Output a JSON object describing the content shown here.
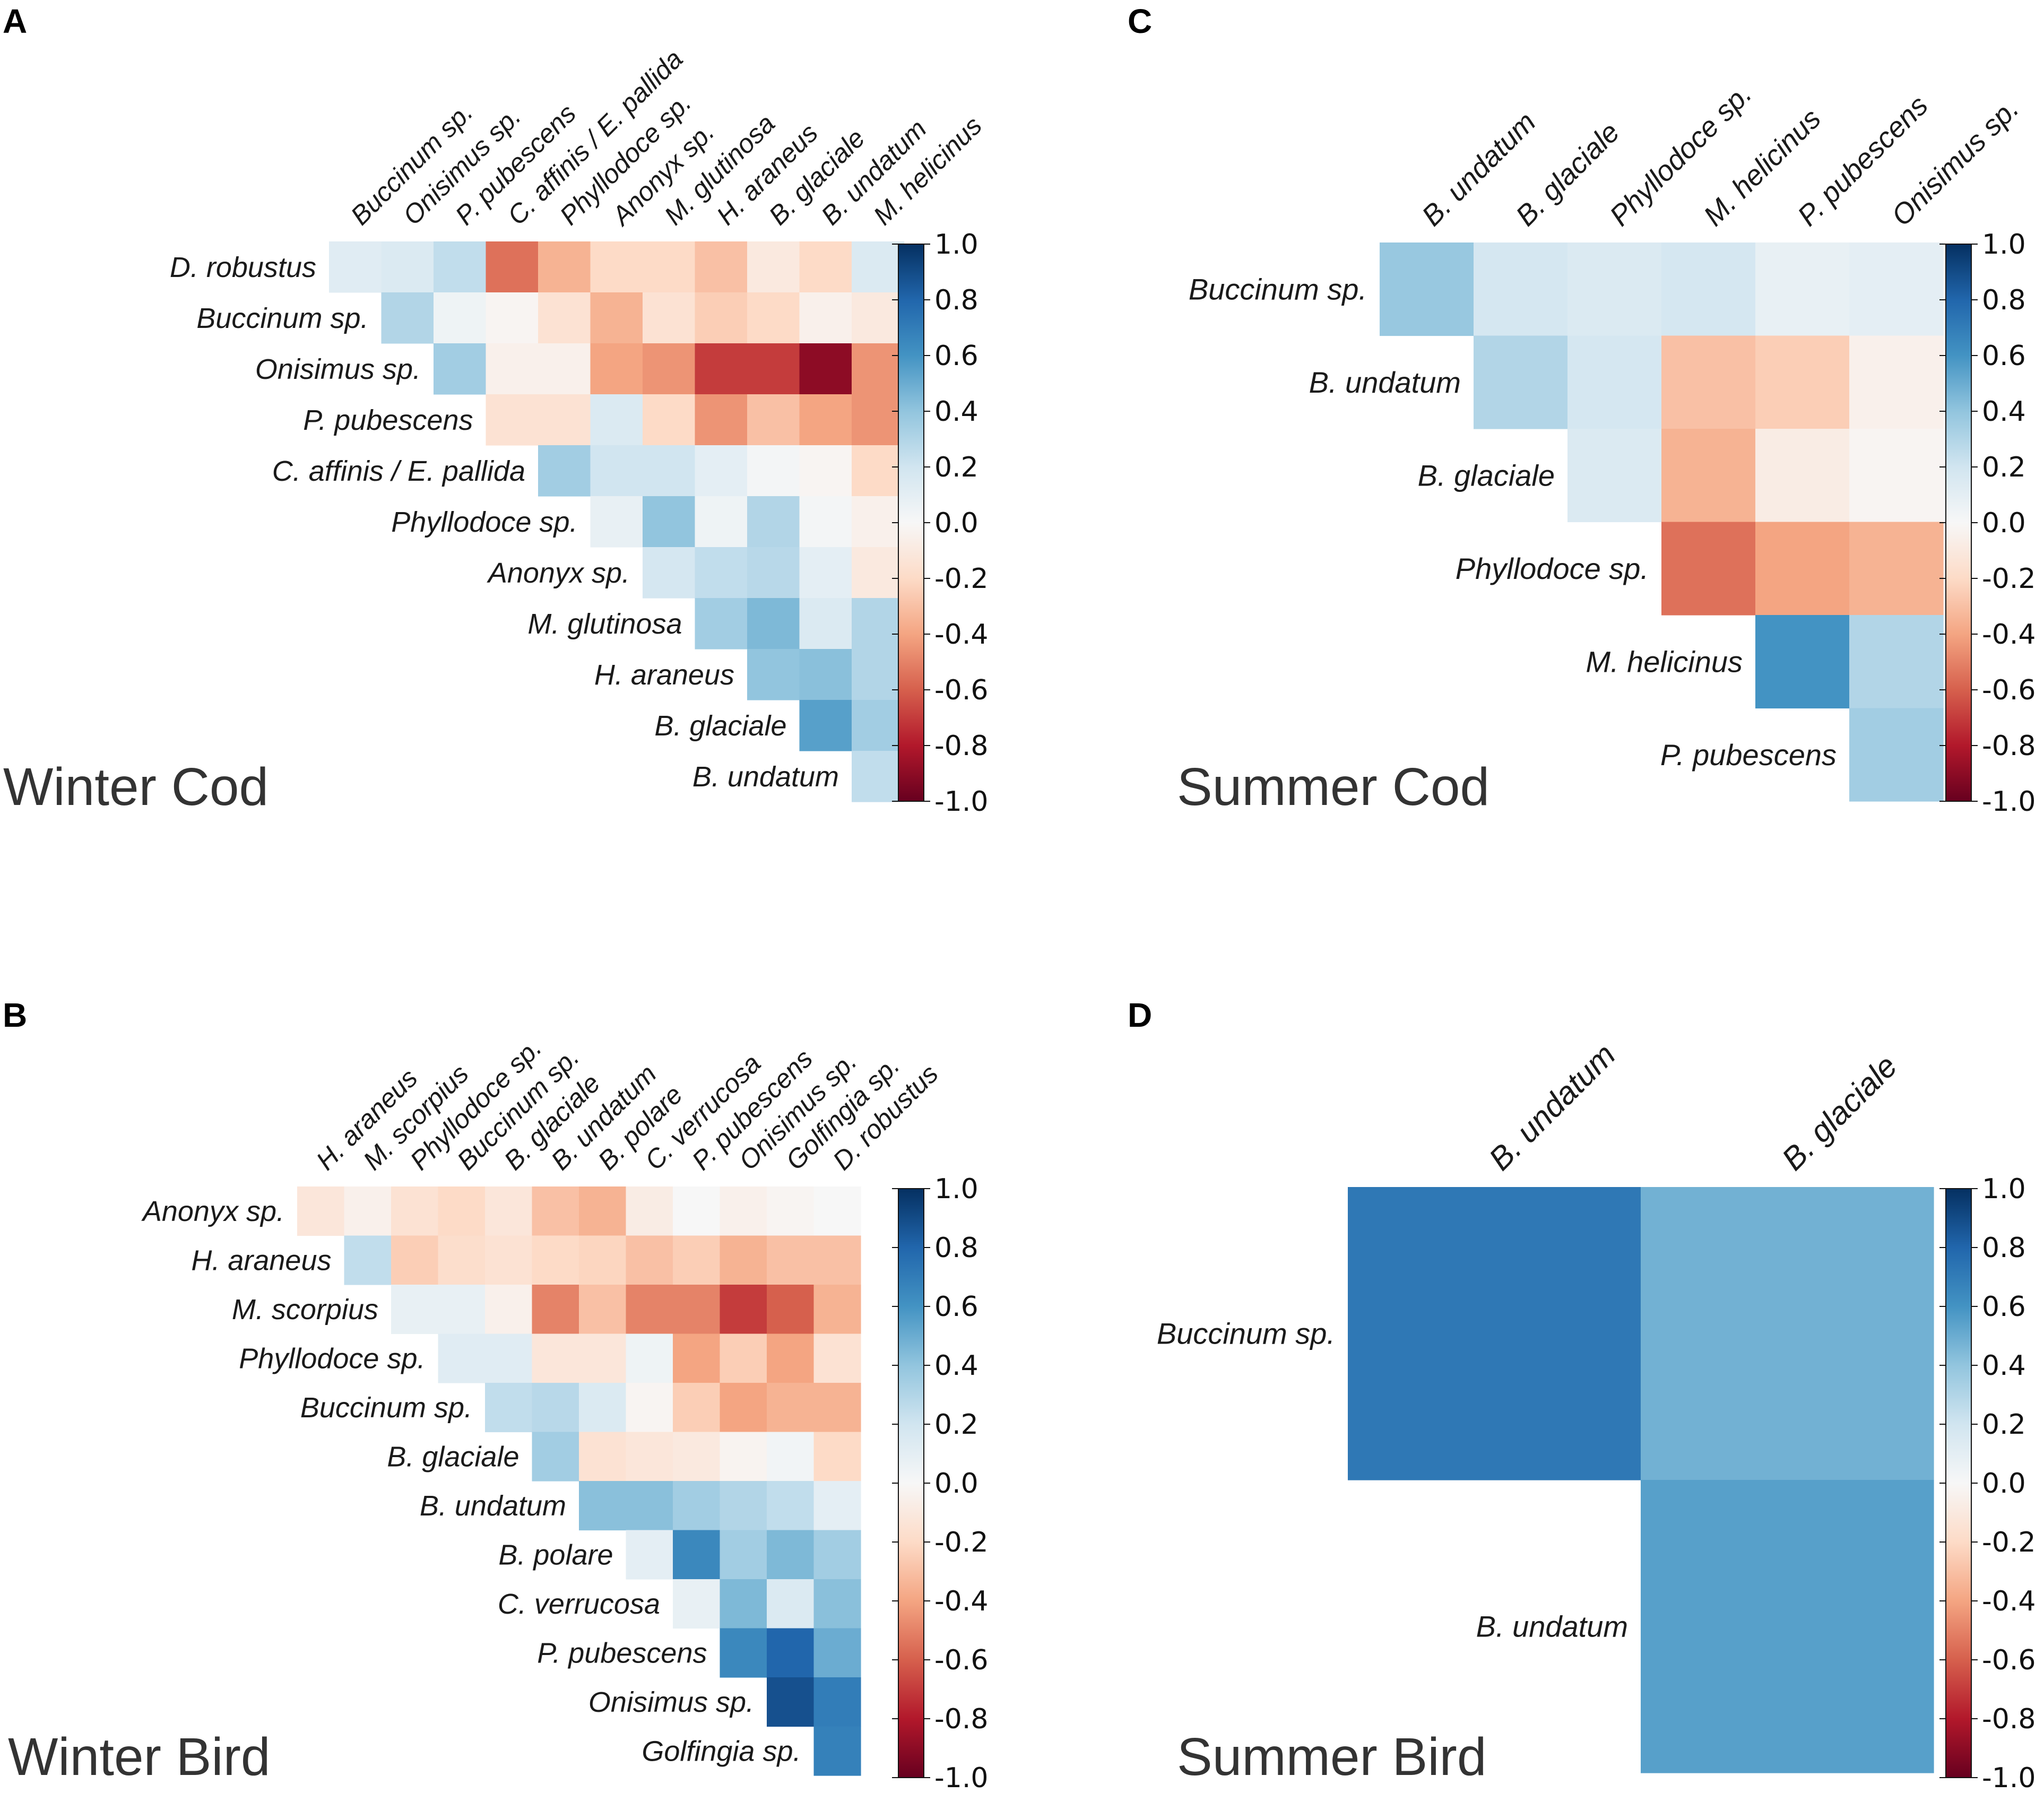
{
  "colormap": {
    "name": "RdBu",
    "stops": [
      "#67001f",
      "#b2182b",
      "#d6604d",
      "#f4a582",
      "#fddbc7",
      "#f7f7f7",
      "#d1e5f0",
      "#92c5de",
      "#4393c3",
      "#2166ac",
      "#053061"
    ],
    "ticks": [
      "1.0",
      "0.8",
      "0.6",
      "0.4",
      "0.2",
      "0.0",
      "-0.2",
      "-0.4",
      "-0.6",
      "-0.8",
      "-1.0"
    ]
  },
  "chart_data": [
    {
      "type": "heatmap",
      "panel": "A",
      "title": "Winter Cod",
      "vmin": -1,
      "vmax": 1,
      "columns": [
        "Buccinum sp.",
        "Onisimus sp.",
        "P. pubescens",
        "C. affinis / E. pallida",
        "Phyllodoce sp.",
        "Anonyx sp.",
        "M. glutinosa",
        "H. araneus",
        "B. glaciale",
        "B. undatum",
        "M. helicinus"
      ],
      "rows": [
        "D. robustus",
        "Buccinum sp.",
        "Onisimus sp.",
        "P. pubescens",
        "C. affinis / E. pallida",
        "Phyllodoce sp.",
        "Anonyx sp.",
        "M. glutinosa",
        "H. araneus",
        "B. glaciale",
        "B. undatum"
      ],
      "values": [
        [
          0.12,
          0.15,
          0.25,
          -0.55,
          -0.35,
          -0.2,
          -0.2,
          -0.3,
          -0.1,
          -0.2,
          0.15
        ],
        [
          null,
          0.3,
          0.05,
          -0.02,
          -0.15,
          -0.35,
          -0.15,
          -0.25,
          -0.2,
          -0.05,
          -0.1
        ],
        [
          null,
          null,
          0.35,
          -0.05,
          -0.05,
          -0.4,
          -0.45,
          -0.7,
          -0.7,
          -0.9,
          -0.45
        ],
        [
          null,
          null,
          null,
          -0.15,
          -0.15,
          0.15,
          -0.2,
          -0.45,
          -0.3,
          -0.4,
          -0.45
        ],
        [
          null,
          null,
          null,
          null,
          0.35,
          0.2,
          0.2,
          0.1,
          0.02,
          -0.02,
          -0.2
        ],
        [
          null,
          null,
          null,
          null,
          null,
          0.08,
          0.4,
          0.05,
          0.3,
          0.02,
          -0.05
        ],
        [
          null,
          null,
          null,
          null,
          null,
          null,
          0.18,
          0.25,
          0.28,
          0.1,
          -0.1
        ],
        [
          null,
          null,
          null,
          null,
          null,
          null,
          null,
          0.35,
          0.45,
          0.15,
          0.3
        ],
        [
          null,
          null,
          null,
          null,
          null,
          null,
          null,
          null,
          0.4,
          0.42,
          0.3
        ],
        [
          null,
          null,
          null,
          null,
          null,
          null,
          null,
          null,
          null,
          0.55,
          0.35
        ],
        [
          null,
          null,
          null,
          null,
          null,
          null,
          null,
          null,
          null,
          null,
          0.25
        ]
      ]
    },
    {
      "type": "heatmap",
      "panel": "C",
      "title": "Summer Cod",
      "vmin": -1,
      "vmax": 1,
      "columns": [
        "B. undatum",
        "B. glaciale",
        "Phyllodoce sp.",
        "M. helicinus",
        "P. pubescens",
        "Onisimus sp."
      ],
      "rows": [
        "Buccinum sp.",
        "B. undatum",
        "B. glaciale",
        "Phyllodoce sp.",
        "M. helicinus",
        "P. pubescens"
      ],
      "values": [
        [
          0.38,
          0.18,
          0.15,
          0.18,
          0.08,
          0.1
        ],
        [
          null,
          0.3,
          0.18,
          -0.3,
          -0.25,
          -0.05
        ],
        [
          null,
          null,
          0.15,
          -0.35,
          -0.08,
          -0.02
        ],
        [
          null,
          null,
          null,
          -0.55,
          -0.4,
          -0.35
        ],
        [
          null,
          null,
          null,
          null,
          0.6,
          0.3
        ],
        [
          null,
          null,
          null,
          null,
          null,
          0.35
        ]
      ]
    },
    {
      "type": "heatmap",
      "panel": "B",
      "title": "Winter Bird",
      "vmin": -1,
      "vmax": 1,
      "columns": [
        "H. araneus",
        "M. scorpius",
        "Phyllodoce sp.",
        "Buccinum sp.",
        "B. glaciale",
        "B. undatum",
        "B. polare",
        "C. verrucosa",
        "P. pubescens",
        "Onisimus sp.",
        "Golfingia sp.",
        "D. robustus"
      ],
      "rows": [
        "Anonyx sp.",
        "H. araneus",
        "M. scorpius",
        "Phyllodoce sp.",
        "Buccinum sp.",
        "B. glaciale",
        "B. undatum",
        "B. polare",
        "C. verrucosa",
        "P. pubescens",
        "Onisimus sp.",
        "Golfingia sp."
      ],
      "values": [
        [
          -0.12,
          -0.05,
          -0.15,
          -0.2,
          -0.12,
          -0.3,
          -0.35,
          -0.08,
          0.0,
          -0.05,
          -0.02,
          0.0
        ],
        [
          null,
          0.25,
          -0.25,
          -0.18,
          -0.15,
          -0.2,
          -0.22,
          -0.3,
          -0.25,
          -0.35,
          -0.3,
          -0.3
        ],
        [
          null,
          null,
          0.08,
          0.08,
          -0.05,
          -0.5,
          -0.3,
          -0.5,
          -0.5,
          -0.7,
          -0.6,
          -0.35
        ],
        [
          null,
          null,
          null,
          0.12,
          0.12,
          -0.12,
          -0.12,
          0.05,
          -0.4,
          -0.25,
          -0.4,
          -0.15
        ],
        [
          null,
          null,
          null,
          null,
          0.25,
          0.28,
          0.15,
          -0.02,
          -0.25,
          -0.4,
          -0.35,
          -0.35
        ],
        [
          null,
          null,
          null,
          null,
          null,
          0.35,
          -0.15,
          -0.12,
          -0.1,
          -0.03,
          0.03,
          -0.2
        ],
        [
          null,
          null,
          null,
          null,
          null,
          null,
          0.42,
          0.42,
          0.35,
          0.3,
          0.25,
          0.1
        ],
        [
          null,
          null,
          null,
          null,
          null,
          null,
          null,
          0.1,
          0.65,
          0.35,
          0.45,
          0.35
        ],
        [
          null,
          null,
          null,
          null,
          null,
          null,
          null,
          null,
          0.08,
          0.45,
          0.15,
          0.42
        ],
        [
          null,
          null,
          null,
          null,
          null,
          null,
          null,
          null,
          null,
          0.65,
          0.8,
          0.5
        ],
        [
          null,
          null,
          null,
          null,
          null,
          null,
          null,
          null,
          null,
          null,
          0.88,
          0.7
        ],
        [
          null,
          null,
          null,
          null,
          null,
          null,
          null,
          null,
          null,
          null,
          null,
          0.68
        ]
      ]
    },
    {
      "type": "heatmap",
      "panel": "D",
      "title": "Summer Bird",
      "vmin": -1,
      "vmax": 1,
      "columns": [
        "B. undatum",
        "B. glaciale"
      ],
      "rows": [
        "Buccinum sp.",
        "B. undatum"
      ],
      "values": [
        [
          0.72,
          0.48
        ],
        [
          null,
          0.55
        ]
      ]
    }
  ]
}
